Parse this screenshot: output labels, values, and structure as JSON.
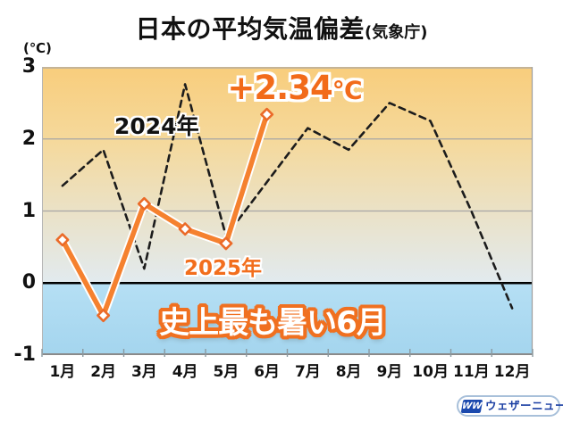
{
  "title": {
    "main": "日本の平均気温偏差",
    "source": "(気象庁)"
  },
  "unit_label": "(℃)",
  "chart_data": {
    "type": "line",
    "categories": [
      "1月",
      "2月",
      "3月",
      "4月",
      "5月",
      "6月",
      "7月",
      "8月",
      "9月",
      "10月",
      "11月",
      "12月"
    ],
    "yticks": [
      3,
      2,
      1,
      0,
      -1
    ],
    "ylim": [
      -1,
      3
    ],
    "grid": true,
    "series": [
      {
        "name": "2024年",
        "style": "dashed",
        "color": "#1C1C1C",
        "values": [
          1.35,
          1.85,
          0.2,
          2.76,
          0.65,
          1.4,
          2.15,
          1.85,
          2.5,
          2.25,
          1.0,
          -0.35
        ]
      },
      {
        "name": "2025年",
        "style": "solid-markers",
        "color": "#F5812F",
        "values": [
          0.6,
          -0.45,
          1.1,
          0.75,
          0.55,
          2.34
        ]
      }
    ],
    "annotations": {
      "peak_value": "+2.34",
      "peak_unit": "℃",
      "banner": "史上最も暑い6月"
    },
    "colors": {
      "line_2025": "#F5812F",
      "marker_stroke": "#EB6A28",
      "label_orange": "#F26E1D",
      "grid": "#A6A6A6",
      "zero_line": "#000000",
      "axis": "#8A8A8A",
      "bg_top": "#F8CD7C",
      "bg_bottom": "#A4D5EE"
    }
  },
  "watermark": {
    "logo": "WW",
    "text": "ウェザーニュース"
  }
}
